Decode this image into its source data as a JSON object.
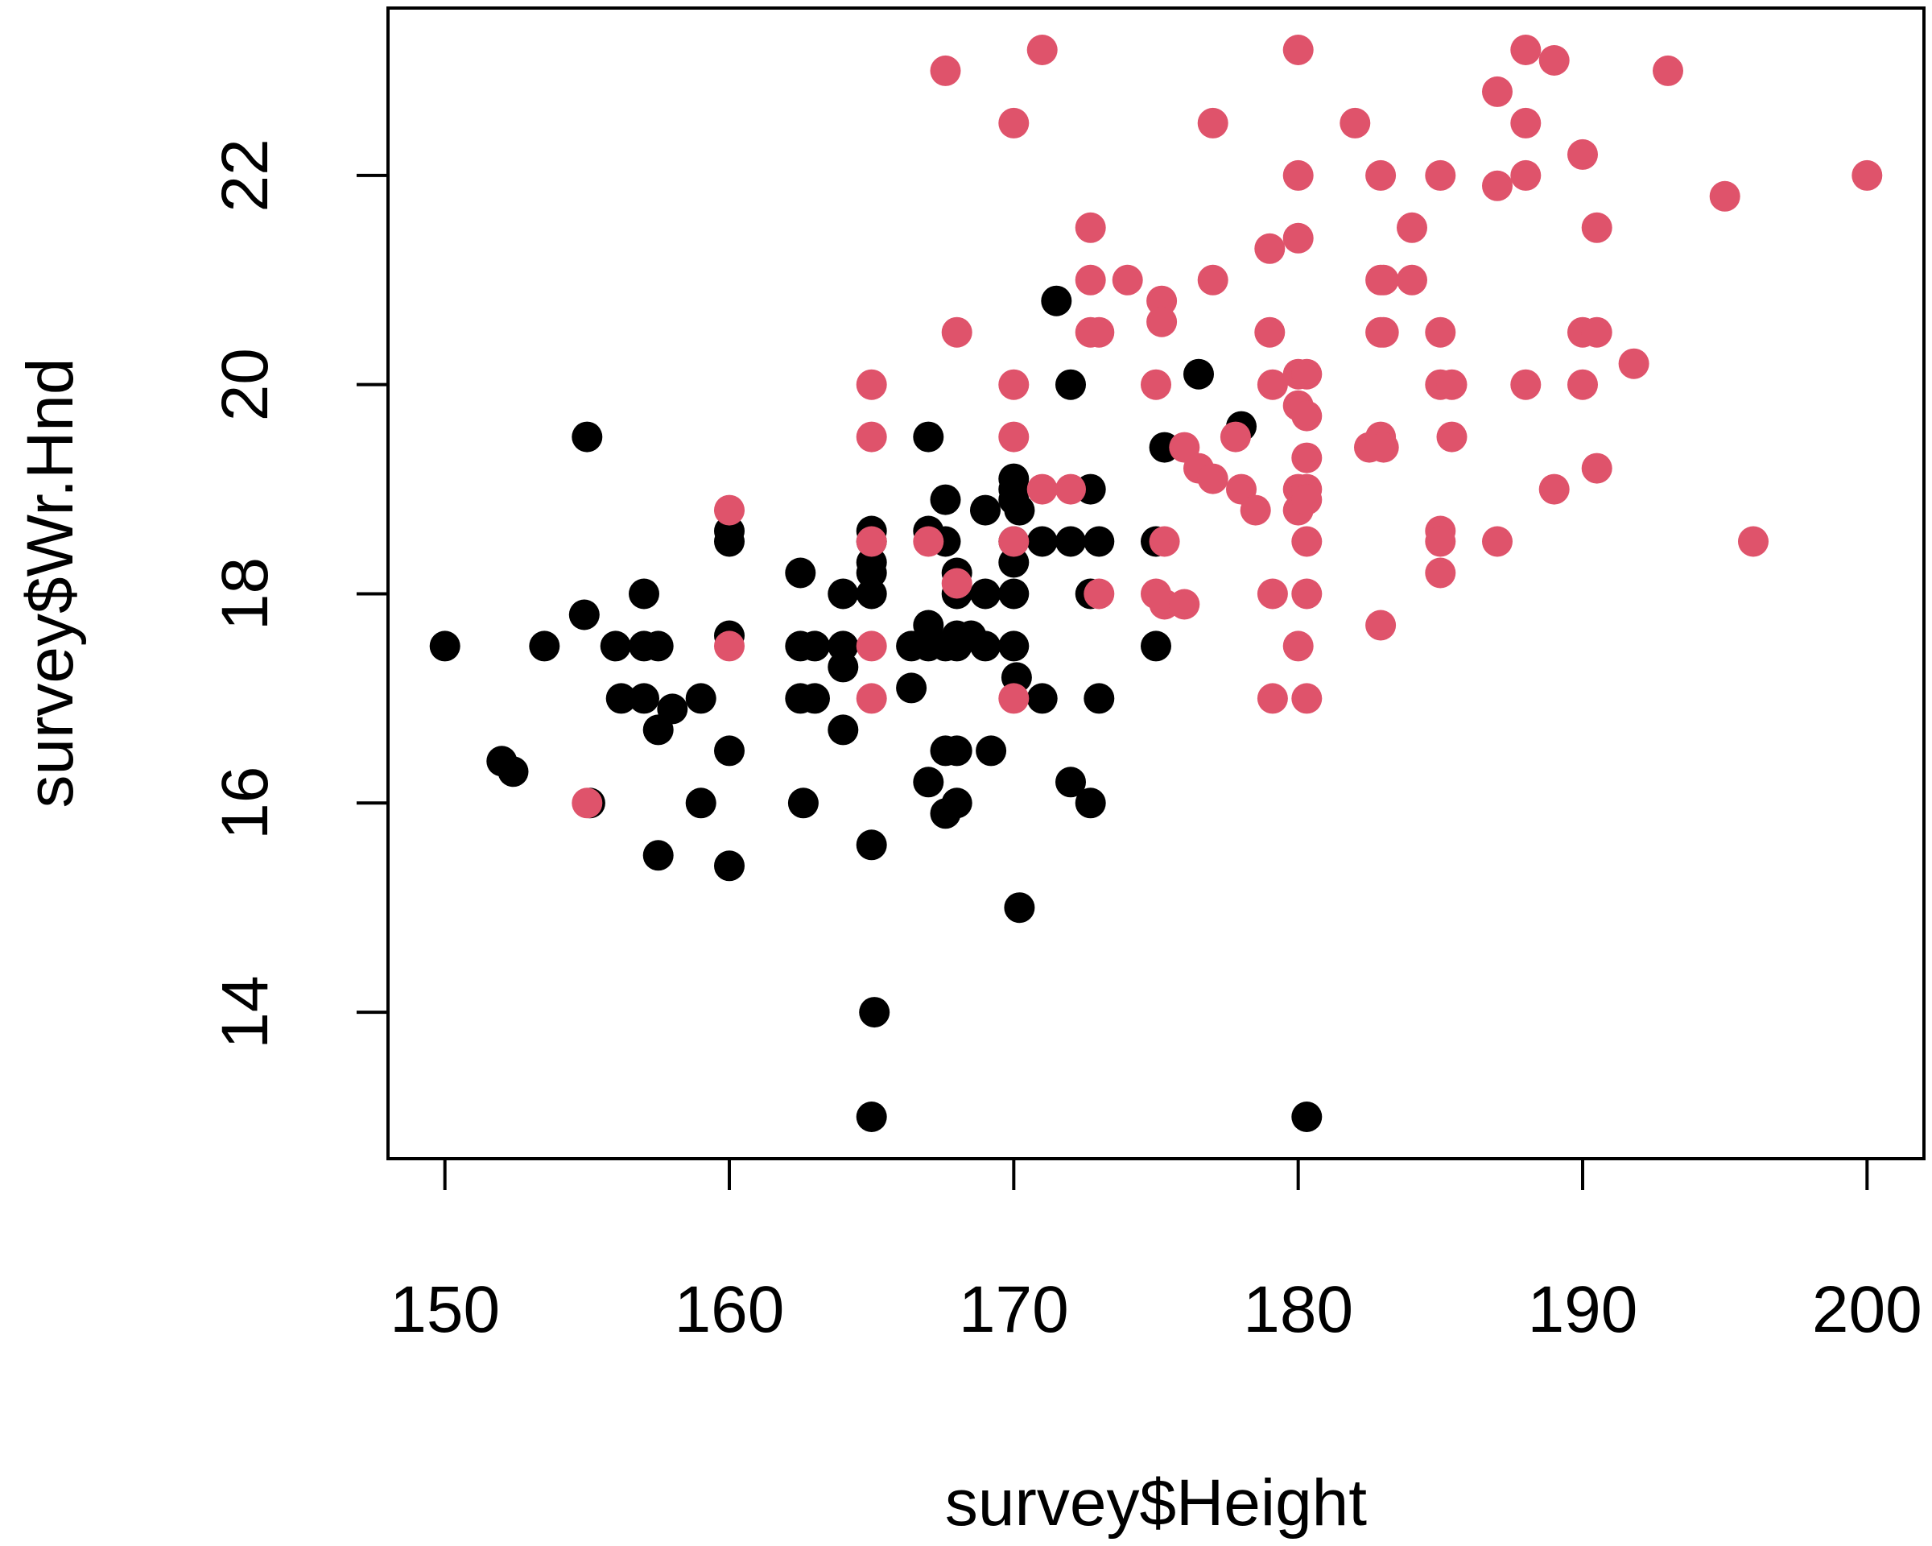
{
  "chart_data": {
    "type": "scatter",
    "title": "",
    "xlabel": "survey$Height",
    "ylabel": "survey$Wr.Hnd",
    "xlim": [
      148,
      202
    ],
    "ylim": [
      12.6,
      23.6
    ],
    "x_ticks": [
      "150",
      "160",
      "170",
      "180",
      "190",
      "200"
    ],
    "y_ticks": [
      "14",
      "16",
      "18",
      "20",
      "22"
    ],
    "grid": false,
    "legend": "none",
    "series": [
      {
        "color": "#000000",
        "points": [
          [
            150,
            17.5
          ],
          [
            152,
            16.4
          ],
          [
            152.4,
            16.3
          ],
          [
            153.5,
            17.5
          ],
          [
            154.9,
            17.8
          ],
          [
            155,
            19.5
          ],
          [
            155.1,
            16.0
          ],
          [
            156,
            17.5
          ],
          [
            156.2,
            17.0
          ],
          [
            157,
            18.0
          ],
          [
            157,
            17.5
          ],
          [
            157,
            17.0
          ],
          [
            157.5,
            16.7
          ],
          [
            157.5,
            15.5
          ],
          [
            157.5,
            17.5
          ],
          [
            158,
            16.9
          ],
          [
            159,
            17.0
          ],
          [
            159,
            16.0
          ],
          [
            160,
            18.6
          ],
          [
            160,
            18.5
          ],
          [
            160,
            17.6
          ],
          [
            160,
            16.5
          ],
          [
            160,
            15.4
          ],
          [
            162.5,
            18.2
          ],
          [
            162.5,
            17.5
          ],
          [
            162.5,
            17.0
          ],
          [
            162.6,
            16.0
          ],
          [
            163,
            17.5
          ],
          [
            163,
            17.0
          ],
          [
            164,
            18.0
          ],
          [
            164,
            17.5
          ],
          [
            164,
            17.3
          ],
          [
            164,
            16.7
          ],
          [
            165,
            18.6
          ],
          [
            165,
            18.3
          ],
          [
            165,
            18.2
          ],
          [
            165,
            18.0
          ],
          [
            165,
            18.5
          ],
          [
            165,
            15.6
          ],
          [
            165.1,
            14.0
          ],
          [
            165,
            13.0
          ],
          [
            166.4,
            17.5
          ],
          [
            166.4,
            17.1
          ],
          [
            167,
            18.6
          ],
          [
            167,
            17.7
          ],
          [
            167,
            17.5
          ],
          [
            167,
            16.2
          ],
          [
            167,
            19.5
          ],
          [
            167.6,
            18.9
          ],
          [
            167.6,
            18.5
          ],
          [
            167.6,
            17.5
          ],
          [
            167.6,
            16.5
          ],
          [
            167.6,
            15.9
          ],
          [
            168,
            18.2
          ],
          [
            168,
            18.0
          ],
          [
            168,
            17.6
          ],
          [
            168,
            17.5
          ],
          [
            168,
            16.5
          ],
          [
            168,
            16.0
          ],
          [
            168.5,
            17.6
          ],
          [
            169,
            18.8
          ],
          [
            169,
            18.0
          ],
          [
            169,
            17.5
          ],
          [
            169.2,
            16.5
          ],
          [
            170,
            19.1
          ],
          [
            170,
            19.0
          ],
          [
            170,
            18.9
          ],
          [
            170,
            18.5
          ],
          [
            170,
            18.3
          ],
          [
            170,
            18.0
          ],
          [
            170,
            17.5
          ],
          [
            170.1,
            17.2
          ],
          [
            170.2,
            18.8
          ],
          [
            170.2,
            15.0
          ],
          [
            171,
            18.5
          ],
          [
            171,
            17.0
          ],
          [
            171.5,
            20.8
          ],
          [
            172,
            20.0
          ],
          [
            172,
            18.5
          ],
          [
            172,
            16.2
          ],
          [
            172.7,
            19.0
          ],
          [
            172.7,
            18.0
          ],
          [
            172.7,
            16.0
          ],
          [
            173,
            18.5
          ],
          [
            173,
            17.0
          ],
          [
            175,
            18.5
          ],
          [
            175,
            17.5
          ],
          [
            175.3,
            19.4
          ],
          [
            176.5,
            20.1
          ],
          [
            178,
            19.6
          ],
          [
            180.3,
            13.0
          ]
        ]
      },
      {
        "color": "#DF536B",
        "points": [
          [
            155,
            16.0
          ],
          [
            160,
            18.8
          ],
          [
            160,
            17.5
          ],
          [
            165,
            20.0
          ],
          [
            165,
            19.5
          ],
          [
            165,
            18.5
          ],
          [
            165,
            17.5
          ],
          [
            165,
            17.0
          ],
          [
            167,
            18.5
          ],
          [
            167.6,
            23.0
          ],
          [
            168,
            20.5
          ],
          [
            168,
            18.1
          ],
          [
            170,
            22.5
          ],
          [
            170,
            20.0
          ],
          [
            170,
            19.5
          ],
          [
            170,
            18.5
          ],
          [
            170,
            17.0
          ],
          [
            171,
            23.2
          ],
          [
            171,
            19.0
          ],
          [
            172,
            19.0
          ],
          [
            172.7,
            21.5
          ],
          [
            172.7,
            21.0
          ],
          [
            172.7,
            20.5
          ],
          [
            173,
            20.5
          ],
          [
            173,
            18.0
          ],
          [
            174,
            21.0
          ],
          [
            175,
            20.0
          ],
          [
            175,
            18.0
          ],
          [
            175.2,
            20.8
          ],
          [
            175.2,
            20.6
          ],
          [
            175.3,
            18.5
          ],
          [
            175.3,
            17.9
          ],
          [
            176,
            19.4
          ],
          [
            176,
            17.9
          ],
          [
            176.5,
            19.2
          ],
          [
            177,
            22.5
          ],
          [
            177,
            21.0
          ],
          [
            177,
            19.1
          ],
          [
            177.8,
            19.5
          ],
          [
            178,
            19.0
          ],
          [
            178.5,
            18.8
          ],
          [
            179,
            21.3
          ],
          [
            179,
            20.5
          ],
          [
            179.1,
            20.0
          ],
          [
            179.1,
            18.0
          ],
          [
            179.1,
            17.0
          ],
          [
            180,
            23.2
          ],
          [
            180,
            22.0
          ],
          [
            180,
            21.4
          ],
          [
            180,
            20.1
          ],
          [
            180,
            19.8
          ],
          [
            180,
            19.0
          ],
          [
            180,
            18.8
          ],
          [
            180,
            17.5
          ],
          [
            180.3,
            20.1
          ],
          [
            180.3,
            19.7
          ],
          [
            180.3,
            19.3
          ],
          [
            180.3,
            19.0
          ],
          [
            180.3,
            18.9
          ],
          [
            180.3,
            18.5
          ],
          [
            180.3,
            18.0
          ],
          [
            180.3,
            17.0
          ],
          [
            182,
            22.5
          ],
          [
            182.5,
            19.4
          ],
          [
            182.9,
            22.0
          ],
          [
            182.9,
            21.0
          ],
          [
            182.9,
            20.5
          ],
          [
            182.9,
            19.5
          ],
          [
            182.9,
            17.7
          ],
          [
            183,
            21.0
          ],
          [
            183,
            20.5
          ],
          [
            183,
            19.4
          ],
          [
            184,
            21.5
          ],
          [
            184,
            21.0
          ],
          [
            185,
            22.0
          ],
          [
            185,
            20.5
          ],
          [
            185,
            20.0
          ],
          [
            185,
            18.6
          ],
          [
            185,
            18.5
          ],
          [
            185,
            18.2
          ],
          [
            185.4,
            20.0
          ],
          [
            185.4,
            19.5
          ],
          [
            187,
            22.8
          ],
          [
            187,
            21.9
          ],
          [
            187,
            18.5
          ],
          [
            188,
            23.2
          ],
          [
            188,
            22.5
          ],
          [
            188,
            22.0
          ],
          [
            188,
            20.0
          ],
          [
            189,
            23.1
          ],
          [
            189,
            19.0
          ],
          [
            190,
            22.2
          ],
          [
            190,
            20.5
          ],
          [
            190,
            20.0
          ],
          [
            190.5,
            21.5
          ],
          [
            190.5,
            20.5
          ],
          [
            190.5,
            19.2
          ],
          [
            191.8,
            20.2
          ],
          [
            193,
            23.0
          ],
          [
            195,
            21.8
          ],
          [
            196,
            18.5
          ],
          [
            200,
            22.0
          ]
        ]
      }
    ]
  }
}
